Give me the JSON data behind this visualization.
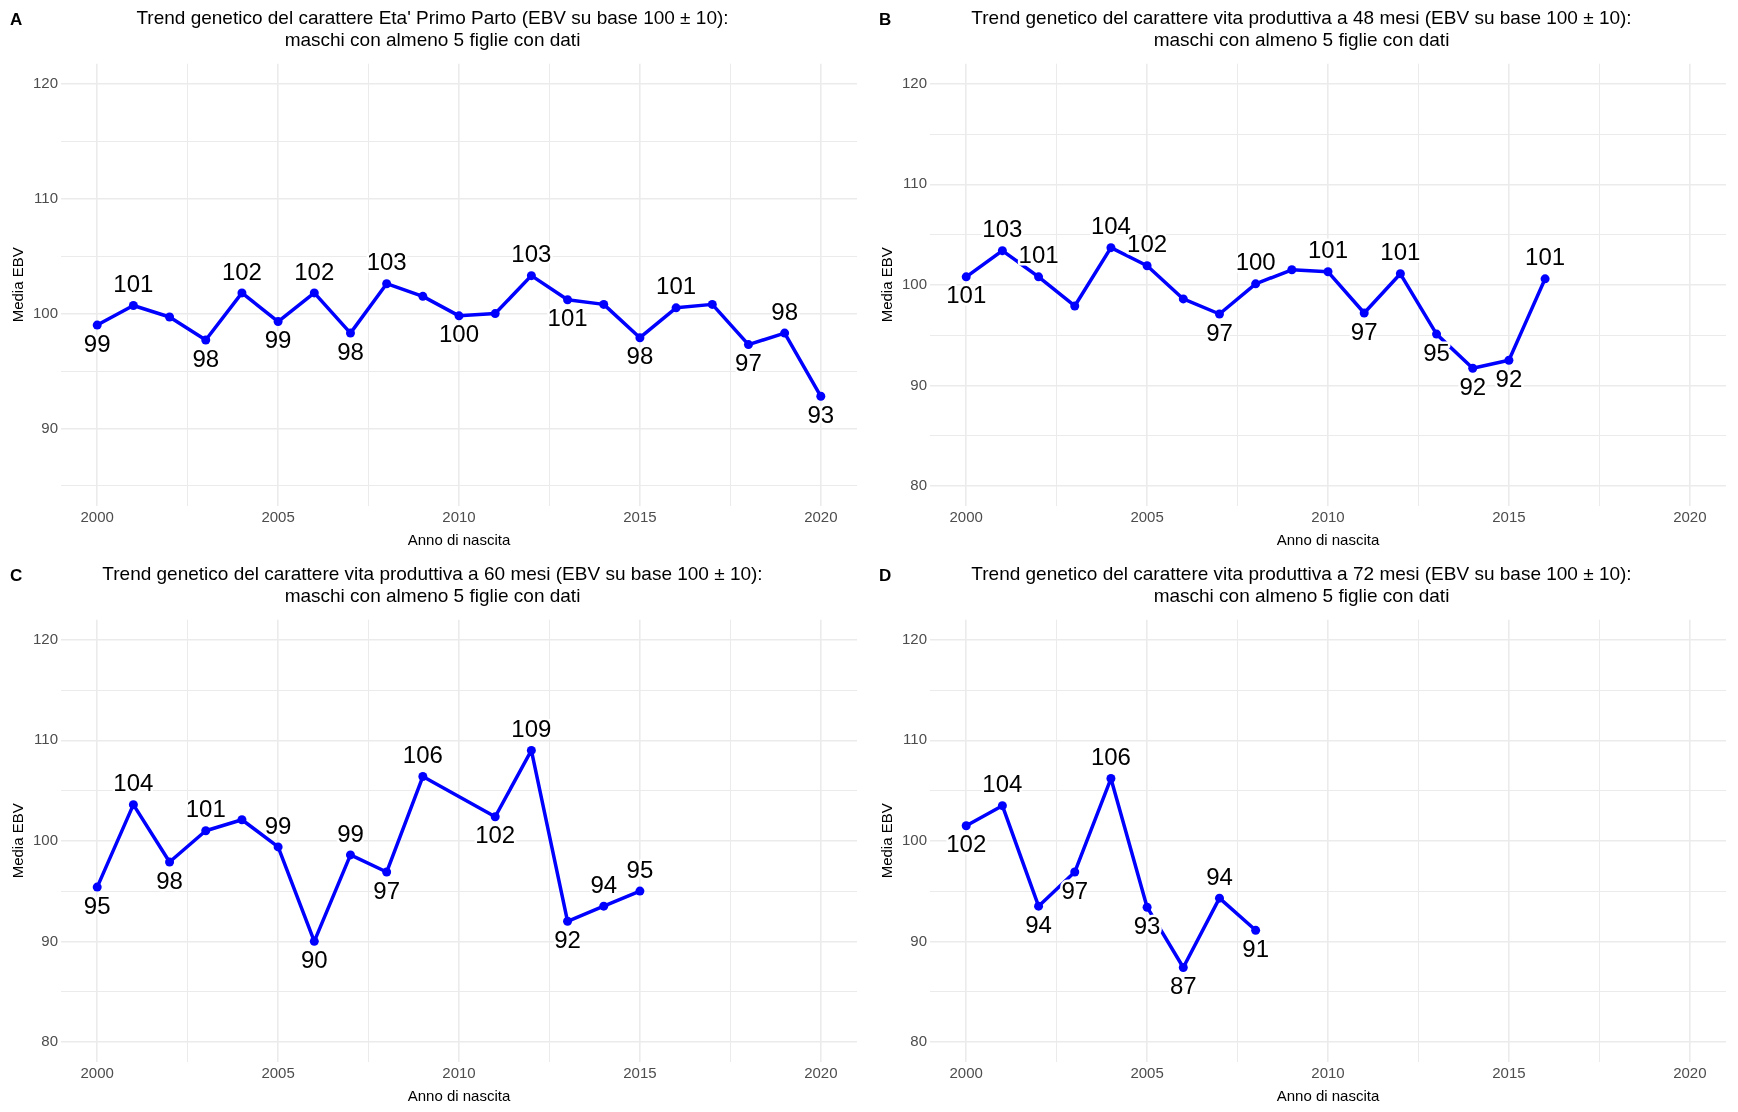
{
  "chart_data": [
    {
      "type": "line",
      "title": "Trend genetico del carattere Eta' Primo Parto (EBV su base 100 ± 10):\nmaschi con almeno 5 figlie con dati",
      "xlabel": "Anno di nascita",
      "ylabel": "Media EBV",
      "annotations": [
        "A"
      ],
      "color": "#0000ff",
      "marker": "circle",
      "grid": true,
      "x": [
        2000,
        2001,
        2002,
        2003,
        2004,
        2005,
        2006,
        2007,
        2008,
        2009,
        2010,
        2011,
        2012,
        2013,
        2014,
        2015,
        2016,
        2017,
        2018,
        2019,
        2020
      ],
      "values": [
        99.0,
        100.7,
        99.7,
        97.7,
        101.8,
        99.3,
        101.8,
        98.3,
        102.6,
        101.5,
        99.8,
        100.0,
        103.3,
        101.2,
        100.8,
        97.9,
        100.5,
        100.8,
        97.3,
        98.3,
        92.8
      ],
      "value_labels": [
        "99",
        "101",
        null,
        "98",
        "102",
        "99",
        "102",
        "98",
        "103",
        null,
        "100",
        null,
        "103",
        "101",
        null,
        "98",
        "101",
        null,
        "97",
        "98",
        "93"
      ],
      "xlim": [
        1999,
        2021
      ],
      "xticks": [
        2000,
        {
          "value": 2002.5,
          "label": null
        },
        2005,
        {
          "value": 2007.5,
          "label": null
        },
        2010,
        {
          "value": 2012.5,
          "label": null
        },
        2015,
        {
          "value": 2017.5,
          "label": null
        },
        2020
      ],
      "ylim": [
        83.25,
        121.75
      ],
      "yticks": [
        {
          "value": 85,
          "label": null
        },
        90,
        {
          "value": 95,
          "label": null
        },
        100,
        {
          "value": 105,
          "label": null
        },
        110,
        {
          "value": 115,
          "label": null
        },
        120
      ]
    },
    {
      "type": "line",
      "title": "Trend genetico del carattere vita produttiva a 48 mesi (EBV su base 100 ± 10):\nmaschi con almeno 5 figlie con dati",
      "xlabel": "Anno di nascita",
      "ylabel": "Media EBV",
      "annotations": [
        "B"
      ],
      "color": "#0000ff",
      "marker": "circle",
      "grid": true,
      "x": [
        2000,
        2001,
        2002,
        2003,
        2004,
        2005,
        2006,
        2007,
        2008,
        2009,
        2010,
        2011,
        2012,
        2013,
        2014,
        2015,
        2016
      ],
      "values": [
        100.8,
        103.4,
        100.8,
        97.9,
        103.7,
        101.9,
        98.6,
        97.1,
        100.1,
        101.5,
        101.3,
        97.2,
        101.1,
        95.1,
        91.7,
        92.5,
        100.6
      ],
      "value_labels": [
        "101",
        "103",
        "101",
        null,
        "104",
        "102",
        null,
        "97",
        "100",
        null,
        "101",
        "97",
        "101",
        "95",
        "92",
        "92",
        "101"
      ],
      "xlim": [
        1999,
        2021
      ],
      "xticks": [
        2000,
        {
          "value": 2002.5,
          "label": null
        },
        2005,
        {
          "value": 2007.5,
          "label": null
        },
        2010,
        {
          "value": 2012.5,
          "label": null
        },
        2015,
        {
          "value": 2017.5,
          "label": null
        },
        2020
      ],
      "ylim": [
        78,
        122
      ],
      "yticks": [
        80,
        {
          "value": 85,
          "label": null
        },
        90,
        {
          "value": 95,
          "label": null
        },
        100,
        {
          "value": 105,
          "label": null
        },
        110,
        {
          "value": 115,
          "label": null
        },
        120
      ]
    },
    {
      "type": "line",
      "title": "Trend genetico del carattere vita produttiva a 60 mesi (EBV su base 100 ± 10):\nmaschi con almeno 5 figlie con dati",
      "xlabel": "Anno di nascita",
      "ylabel": "Media EBV",
      "annotations": [
        "C"
      ],
      "color": "#0000ff",
      "marker": "circle",
      "grid": true,
      "x": [
        2000,
        2001,
        2002,
        2003,
        2004,
        2005,
        2006,
        2007,
        2008,
        2009,
        2011,
        2012,
        2013,
        2014,
        2015
      ],
      "values": [
        95.4,
        103.6,
        97.9,
        101.0,
        102.1,
        99.4,
        90.0,
        98.6,
        96.9,
        106.4,
        102.4,
        109.0,
        92.0,
        93.5,
        95.0
      ],
      "value_labels": [
        "95",
        "104",
        "98",
        "101",
        null,
        "99",
        "90",
        "99",
        "97",
        "106",
        "102",
        "109",
        "92",
        "94",
        "95"
      ],
      "xlim": [
        1999,
        2021
      ],
      "xticks": [
        2000,
        {
          "value": 2002.5,
          "label": null
        },
        2005,
        {
          "value": 2007.5,
          "label": null
        },
        2010,
        {
          "value": 2012.5,
          "label": null
        },
        2015,
        {
          "value": 2017.5,
          "label": null
        },
        2020
      ],
      "ylim": [
        78,
        122
      ],
      "yticks": [
        80,
        {
          "value": 85,
          "label": null
        },
        90,
        {
          "value": 95,
          "label": null
        },
        100,
        {
          "value": 105,
          "label": null
        },
        110,
        {
          "value": 115,
          "label": null
        },
        120
      ]
    },
    {
      "type": "line",
      "title": "Trend genetico del carattere vita produttiva a 72 mesi (EBV su base 100 ± 10):\nmaschi con almeno 5 figlie con dati",
      "xlabel": "Anno di nascita",
      "ylabel": "Media EBV",
      "annotations": [
        "D"
      ],
      "color": "#0000ff",
      "marker": "circle",
      "grid": true,
      "x": [
        2000,
        2001,
        2002,
        2003,
        2004,
        2005,
        2006,
        2007,
        2008
      ],
      "values": [
        101.5,
        103.5,
        93.5,
        96.9,
        106.2,
        93.4,
        87.4,
        94.3,
        91.1
      ],
      "value_labels": [
        "102",
        "104",
        "94",
        "97",
        "106",
        "93",
        "87",
        "94",
        "91"
      ],
      "xlim": [
        1999,
        2021
      ],
      "xticks": [
        2000,
        {
          "value": 2002.5,
          "label": null
        },
        2005,
        {
          "value": 2007.5,
          "label": null
        },
        2010,
        {
          "value": 2012.5,
          "label": null
        },
        2015,
        {
          "value": 2017.5,
          "label": null
        },
        2020
      ],
      "ylim": [
        78,
        122
      ],
      "yticks": [
        80,
        {
          "value": 85,
          "label": null
        },
        90,
        {
          "value": 95,
          "label": null
        },
        100,
        {
          "value": 105,
          "label": null
        },
        110,
        {
          "value": 115,
          "label": null
        },
        120
      ]
    }
  ]
}
